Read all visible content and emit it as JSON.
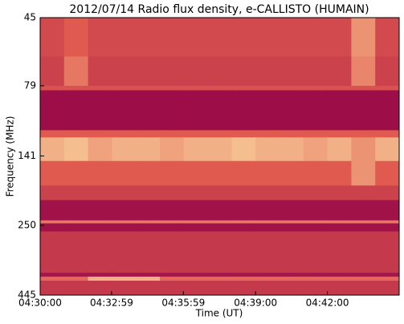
{
  "chart_data": {
    "type": "spectrogram",
    "title": "2012/07/14  Radio flux density, e-CALLISTO (HUMAIN)",
    "x_label": "Time (UT)",
    "y_label": "Frequency (MHz)",
    "xlim": [
      "04:30:00",
      "04:45:00"
    ],
    "xticks": [
      "04:30:00",
      "04:32:59",
      "04:35:59",
      "04:39:00",
      "04:42:00"
    ],
    "ylim": [
      445,
      45
    ],
    "yticks": [
      45,
      79,
      141,
      250,
      445
    ],
    "yscale": "log",
    "y_bins": [
      45,
      62,
      79,
      82,
      114,
      121,
      147,
      180,
      203,
      240,
      246,
      263,
      370,
      382,
      395,
      445
    ],
    "colormap": [
      "#9a0a47",
      "#e05a50",
      "#fde9a9"
    ],
    "z": [
      [
        0.4,
        0.5,
        0.4,
        0.4,
        0.4,
        0.4,
        0.4,
        0.4,
        0.4,
        0.4,
        0.4,
        0.4,
        0.4,
        0.7,
        0.4
      ],
      [
        0.35,
        0.6,
        0.35,
        0.35,
        0.35,
        0.35,
        0.35,
        0.35,
        0.35,
        0.35,
        0.35,
        0.35,
        0.35,
        0.65,
        0.35
      ],
      [
        0.45,
        0.45,
        0.45,
        0.45,
        0.45,
        0.45,
        0.45,
        0.45,
        0.45,
        0.45,
        0.45,
        0.45,
        0.45,
        0.45,
        0.45
      ],
      [
        0.02,
        0.02,
        0.02,
        0.02,
        0.02,
        0.02,
        0.02,
        0.02,
        0.02,
        0.02,
        0.02,
        0.02,
        0.02,
        0.02,
        0.02
      ],
      [
        0.5,
        0.5,
        0.5,
        0.5,
        0.5,
        0.5,
        0.5,
        0.5,
        0.5,
        0.5,
        0.5,
        0.5,
        0.5,
        0.5,
        0.5
      ],
      [
        0.8,
        0.85,
        0.75,
        0.8,
        0.8,
        0.75,
        0.8,
        0.8,
        0.85,
        0.8,
        0.8,
        0.75,
        0.8,
        0.7,
        0.8
      ],
      [
        0.5,
        0.5,
        0.5,
        0.5,
        0.5,
        0.5,
        0.5,
        0.5,
        0.5,
        0.5,
        0.5,
        0.5,
        0.5,
        0.7,
        0.5
      ],
      [
        0.35,
        0.35,
        0.35,
        0.35,
        0.35,
        0.35,
        0.35,
        0.35,
        0.35,
        0.35,
        0.35,
        0.35,
        0.35,
        0.35,
        0.35
      ],
      [
        0.05,
        0.05,
        0.05,
        0.05,
        0.05,
        0.05,
        0.05,
        0.05,
        0.05,
        0.05,
        0.05,
        0.05,
        0.05,
        0.05,
        0.05
      ],
      [
        0.6,
        0.6,
        0.6,
        0.6,
        0.6,
        0.6,
        0.6,
        0.6,
        0.6,
        0.6,
        0.6,
        0.6,
        0.6,
        0.6,
        0.6
      ],
      [
        0.05,
        0.05,
        0.05,
        0.05,
        0.05,
        0.05,
        0.05,
        0.05,
        0.05,
        0.05,
        0.05,
        0.05,
        0.05,
        0.05,
        0.05
      ],
      [
        0.3,
        0.3,
        0.3,
        0.3,
        0.3,
        0.3,
        0.3,
        0.3,
        0.3,
        0.3,
        0.3,
        0.3,
        0.3,
        0.3,
        0.3
      ],
      [
        0.08,
        0.08,
        0.08,
        0.08,
        0.08,
        0.08,
        0.08,
        0.08,
        0.08,
        0.08,
        0.08,
        0.08,
        0.08,
        0.08,
        0.08
      ],
      [
        0.55,
        0.55,
        0.8,
        0.8,
        0.8,
        0.55,
        0.55,
        0.55,
        0.55,
        0.55,
        0.55,
        0.55,
        0.55,
        0.55,
        0.55
      ],
      [
        0.3,
        0.3,
        0.3,
        0.3,
        0.3,
        0.3,
        0.3,
        0.3,
        0.3,
        0.3,
        0.3,
        0.3,
        0.3,
        0.3,
        0.3
      ]
    ]
  }
}
